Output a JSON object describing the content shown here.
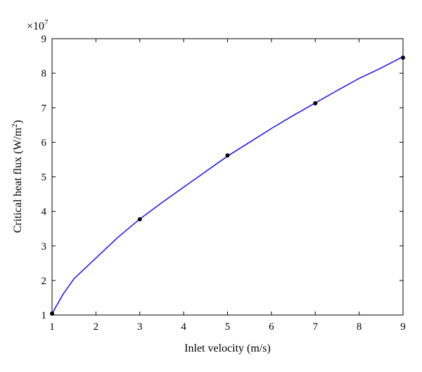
{
  "chart_data": {
    "type": "line",
    "xlabel": "Inlet velocity (m/s)",
    "ylabel": "Critical heat flux (W/m",
    "ylabel_superscript": "2",
    "ylabel_close": ")",
    "y_scale_multiplier": "×10",
    "y_scale_exponent": "7",
    "xlim": [
      1,
      9
    ],
    "ylim": [
      1,
      9
    ],
    "x_ticks": [
      "1",
      "2",
      "3",
      "4",
      "5",
      "6",
      "7",
      "8",
      "9"
    ],
    "y_ticks": [
      "1",
      "2",
      "3",
      "4",
      "5",
      "6",
      "7",
      "8",
      "9"
    ],
    "grid": false,
    "series": [
      {
        "style": "line",
        "color": "#0000ff",
        "x": [
          1,
          1.25,
          1.5,
          2,
          2.5,
          3,
          3.5,
          4,
          4.5,
          5,
          5.5,
          6,
          6.5,
          7,
          7.5,
          8,
          8.5,
          9
        ],
        "y": [
          1.04,
          1.6,
          2.05,
          2.65,
          3.25,
          3.78,
          4.25,
          4.7,
          5.15,
          5.6,
          6.0,
          6.4,
          6.78,
          7.14,
          7.5,
          7.85,
          8.15,
          8.48
        ]
      },
      {
        "style": "markers",
        "color": "#000000",
        "x": [
          1,
          3,
          5,
          7,
          9
        ],
        "y": [
          1.04,
          3.77,
          5.62,
          7.13,
          8.45
        ]
      }
    ]
  }
}
